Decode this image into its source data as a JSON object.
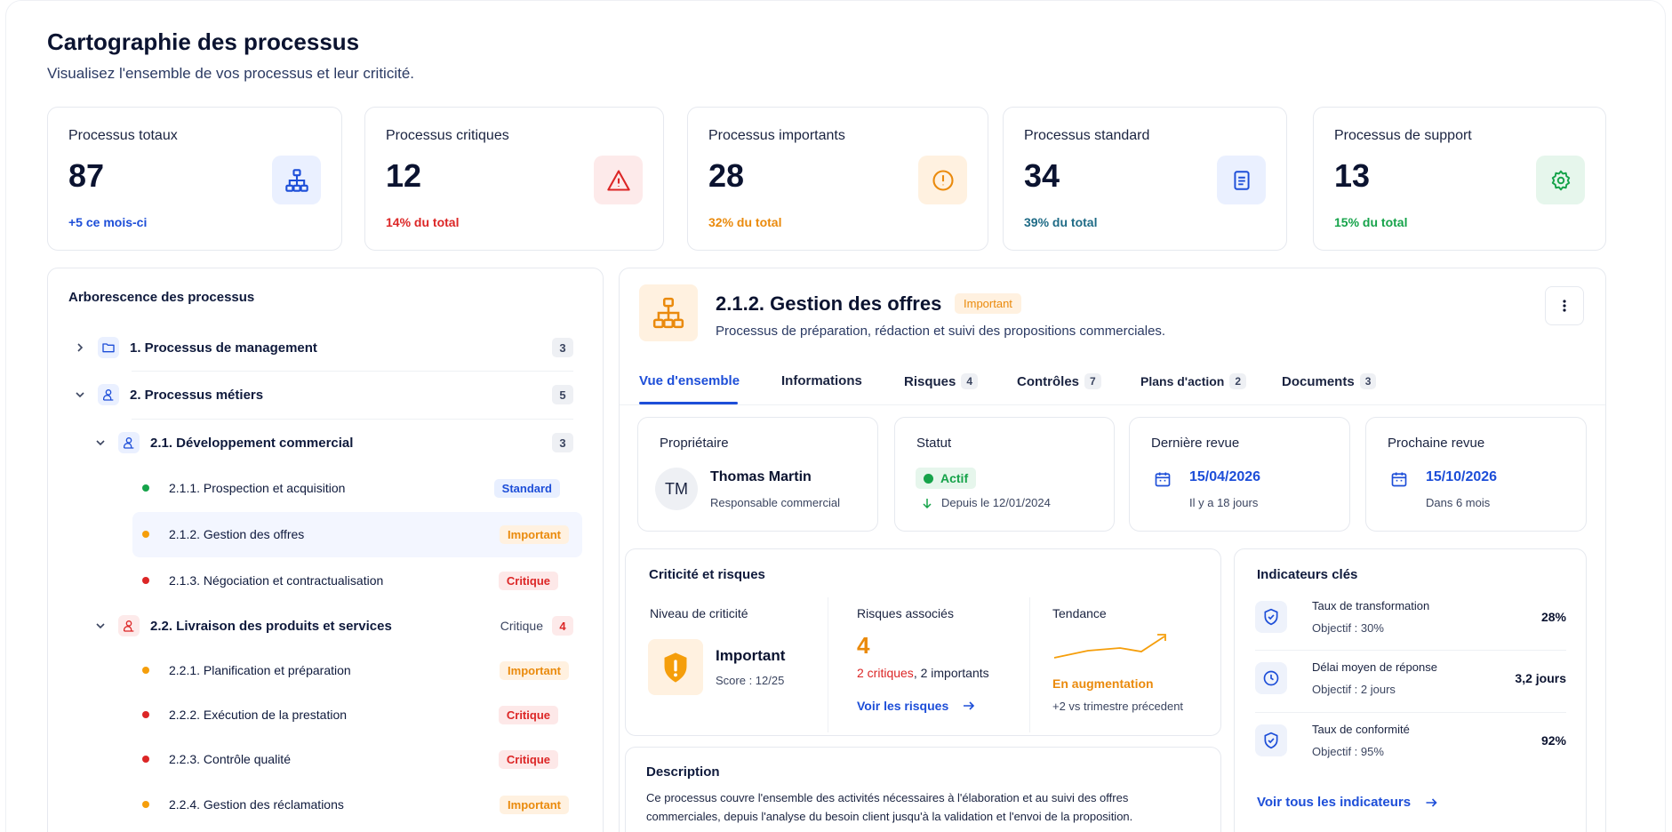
{
  "page": {
    "title": "Cartographie des processus",
    "subtitle": "Visualisez l'ensemble de vos processus et leur criticité."
  },
  "stats": [
    {
      "label": "Processus totaux",
      "value": "87",
      "sub": "+5 ce mois-ci",
      "icon": "hierarchy-icon",
      "color": "#1d4ed8",
      "bg": "#eaf0ff"
    },
    {
      "label": "Processus critiques",
      "value": "12",
      "sub": "14% du total",
      "icon": "warning-icon",
      "color": "#dc2626",
      "bg": "#fdeaea"
    },
    {
      "label": "Processus importants",
      "value": "28",
      "sub": "32% du total",
      "icon": "alert-circle-icon",
      "color": "#ea8a0c",
      "bg": "#fff1e0"
    },
    {
      "label": "Processus standard",
      "value": "34",
      "sub": "39% du total",
      "icon": "document-icon",
      "color": "#1d4ed8",
      "bg": "#eaf0ff"
    },
    {
      "label": "Processus de support",
      "value": "13",
      "sub": "15% du total",
      "icon": "gear-icon",
      "color": "#16a34a",
      "bg": "#e6f6ec"
    }
  ],
  "tree": {
    "title": "Arborescence des processus",
    "n1": {
      "label": "1. Processus de management",
      "count": "3"
    },
    "n2": {
      "label": "2. Processus métiers",
      "count": "5"
    },
    "n21": {
      "label": "2.1. Développement commercial",
      "count": "3"
    },
    "l211": {
      "label": "2.1.1.  Prospection et acquisition",
      "badge": "Standard"
    },
    "l212": {
      "label": "2.1.2.  Gestion des offres",
      "badge": "Important"
    },
    "l213": {
      "label": "2.1.3.  Négociation et contractualisation",
      "badge": "Critique"
    },
    "n22": {
      "label": "2.2. Livraison des produits et services",
      "tag": "Critique",
      "count": "4"
    },
    "l221": {
      "label": "2.2.1.  Planification et préparation",
      "badge": "Important"
    },
    "l222": {
      "label": "2.2.2.   Exécution de la prestation",
      "badge": "Critique"
    },
    "l223": {
      "label": "2.2.3.  Contrôle qualité",
      "badge": "Critique"
    },
    "l224": {
      "label": "2.2.4.  Gestion des réclamations",
      "badge": "Important"
    }
  },
  "detail": {
    "title": "2.1.2. Gestion des offres",
    "badge": "Important",
    "desc": "Processus de préparation, rédaction et suivi des propositions commerciales.",
    "tabs": [
      {
        "label": "Vue d'ensemble",
        "count": ""
      },
      {
        "label": "Informations",
        "count": ""
      },
      {
        "label": "Risques",
        "count": "4"
      },
      {
        "label": "Contrôles",
        "count": "7"
      },
      {
        "label": "Plans d'action",
        "count": "2"
      },
      {
        "label": "Documents",
        "count": "3"
      }
    ],
    "owner": {
      "label": "Propriétaire",
      "initials": "TM",
      "name": "Thomas Martin",
      "role": "Responsable commercial"
    },
    "status": {
      "label": "Statut",
      "value": "Actif",
      "since": "Depuis le 12/01/2024"
    },
    "last": {
      "label": "Dernière revue",
      "date": "15/04/2026",
      "rel": "Il y a 18 jours"
    },
    "next": {
      "label": "Prochaine revue",
      "date": "15/10/2026",
      "rel": "Dans 6 mois"
    },
    "crit": {
      "title": "Criticité et risques",
      "level_label": "Niveau de criticité",
      "level": "Important",
      "score": "Score : 12/25",
      "risks_label": "Risques associés",
      "risks_count": "4",
      "risks_crit": "2 critiques",
      "risks_rest": ", 2 importants",
      "risks_link": "Voir les risques",
      "trend_label": "Tendance",
      "trend": "En augmentation",
      "trend_sub": "+2 vs trimestre précedent"
    },
    "kpi": {
      "title": "Indicateurs clés",
      "items": [
        {
          "name": "Taux de transformation",
          "goal": "Objectif : 30%",
          "value": "28%",
          "icon": "shield-check-icon"
        },
        {
          "name": "Délai moyen de réponse",
          "goal": "Objectif : 2 jours",
          "value": "3,2 jours",
          "icon": "clock-icon"
        },
        {
          "name": "Taux de conformité",
          "goal": "Objectif : 95%",
          "value": "92%",
          "icon": "shield-check-icon"
        }
      ],
      "link": "Voir tous les indicateurs"
    },
    "description": {
      "title": "Description",
      "line1": "Ce processus couvre l'ensemble des activités nécessaires à l'élaboration et au suivi des offres",
      "line2": "commerciales, depuis l'analyse du besoin client jusqu'à la validation et l'envoi de la proposition."
    }
  }
}
